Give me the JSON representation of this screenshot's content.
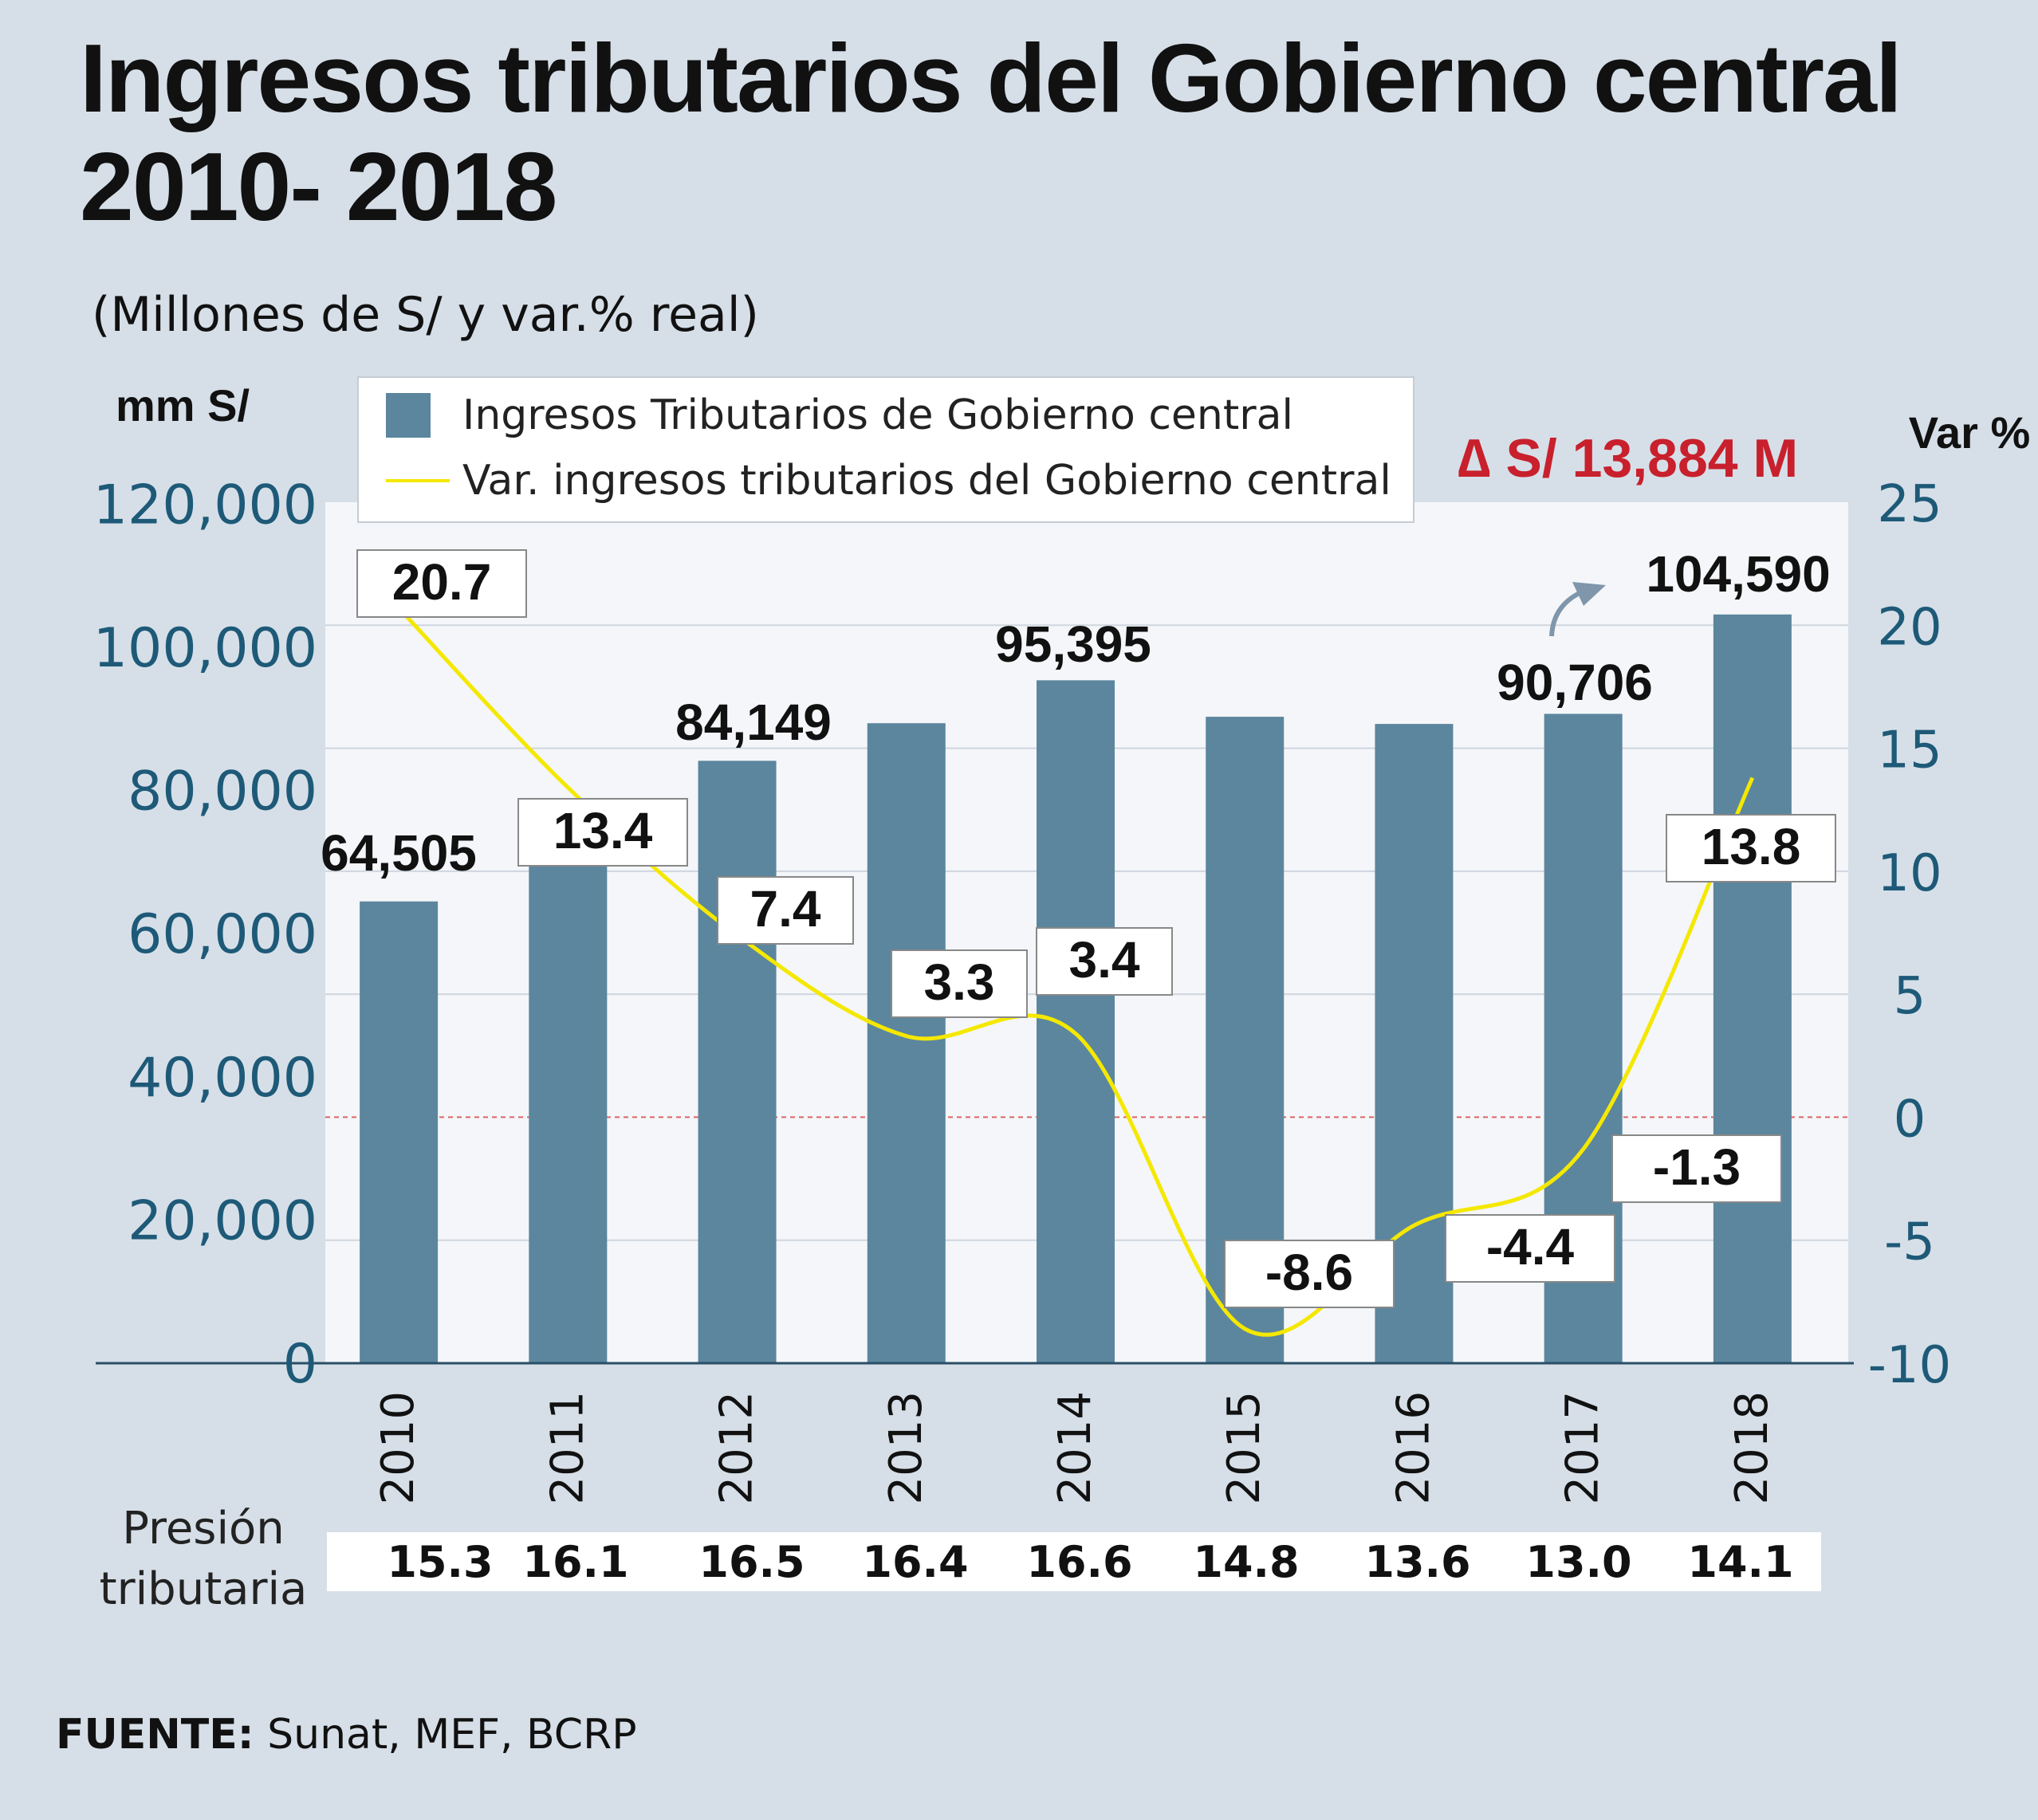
{
  "title": {
    "line1": "Ingresos tributarios del Gobierno central",
    "line2": "2010- 2018"
  },
  "subtitle": "(Millones de S/ y var.% real)",
  "delta_note": "∆ S/ 13,884 M",
  "presion": {
    "label_line1": "Presión",
    "label_line2": "tributaria",
    "values": [
      "15.3",
      "16.1",
      "16.5",
      "16.4",
      "16.6",
      "14.8",
      "13.6",
      "13.0",
      "14.1"
    ]
  },
  "source": {
    "label": "FUENTE:",
    "text": " Sunat, MEF, BCRP"
  },
  "colors": {
    "bar": "#5b869e",
    "line": "#f5e800",
    "left_axis": "#1e5a78",
    "delta": "#c8202c",
    "plot_bg": "#f4f6f9"
  },
  "chart_data": {
    "type": "bar",
    "categories": [
      "2010",
      "2011",
      "2012",
      "2013",
      "2014",
      "2015",
      "2016",
      "2017",
      "2018"
    ],
    "y_axis_left": {
      "label": "mm S/",
      "ticks": [
        0,
        20000,
        40000,
        60000,
        80000,
        100000,
        120000
      ],
      "tick_labels": [
        "0",
        "20,000",
        "40,000",
        "60,000",
        "80,000",
        "100,000",
        "120,000"
      ],
      "range": [
        0,
        120000
      ]
    },
    "y_axis_right": {
      "label": "Var %",
      "ticks": [
        -10,
        -5,
        0,
        5,
        10,
        15,
        20,
        25
      ],
      "tick_labels": [
        "-10",
        "-5",
        "0",
        "5",
        "10",
        "15",
        "20",
        "25"
      ],
      "range": [
        -10,
        25
      ]
    },
    "series": [
      {
        "name": "Ingresos Tributarios de Gobierno central",
        "type": "bar",
        "axis": "left",
        "values": [
          64505,
          70500,
          84149,
          89400,
          95395,
          90300,
          89300,
          90706,
          104590
        ],
        "labels": [
          "64,505",
          "",
          "84,149",
          "",
          "95,395",
          "",
          "",
          "90,706",
          "104,590"
        ]
      },
      {
        "name": "Var. ingresos tributarios del Gobierno central",
        "type": "line",
        "axis": "right",
        "values": [
          20.7,
          13.4,
          7.4,
          3.3,
          3.4,
          -8.6,
          -4.4,
          -1.3,
          13.8
        ],
        "labels": [
          "20.7",
          "13.4",
          "7.4",
          "3.3",
          "3.4",
          "-8.6",
          "-4.4",
          "-1.3",
          "13.8"
        ]
      }
    ],
    "grid": true,
    "legend": "top"
  }
}
